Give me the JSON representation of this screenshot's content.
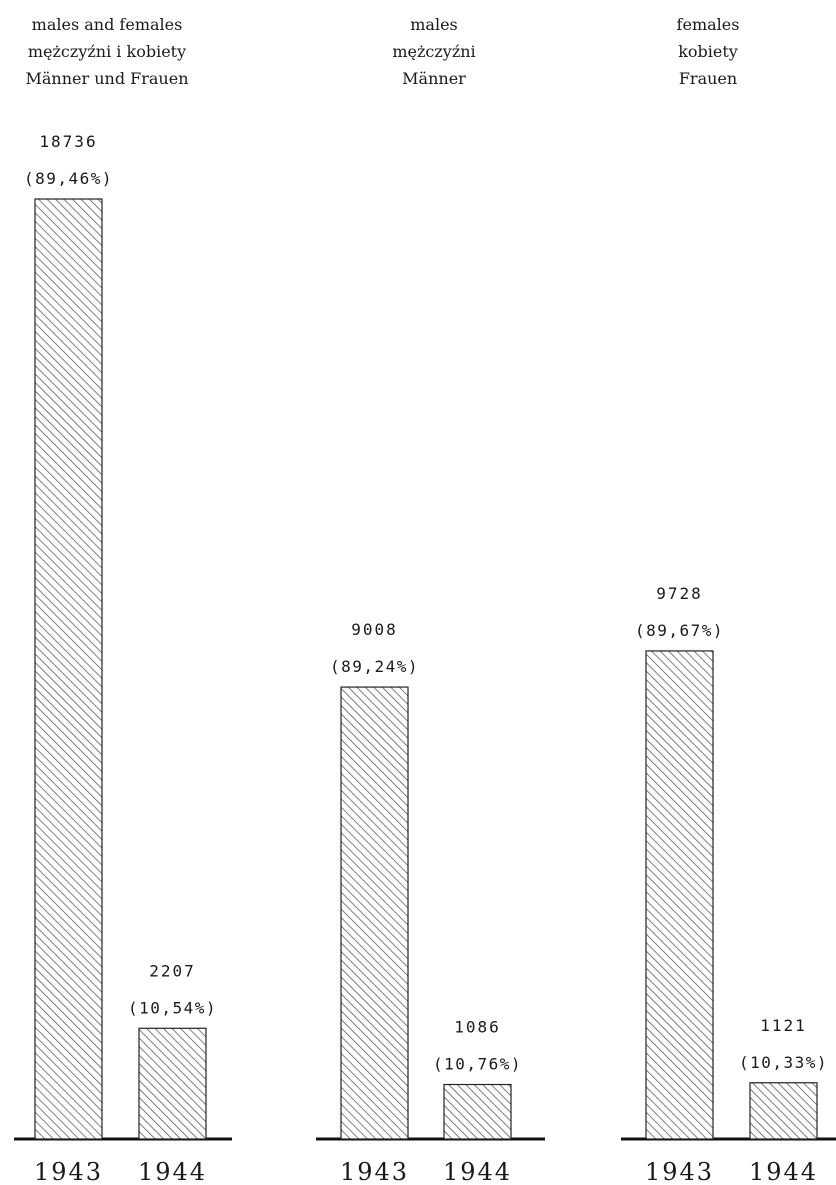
{
  "colors": {
    "ink": "#1a1a1a",
    "hatch": "#4a4a4a",
    "background": "#ffffff"
  },
  "chart_data": [
    {
      "type": "bar",
      "title_lines": [
        "males and females",
        "mężczyźni i kobiety",
        "Männer und Frauen"
      ],
      "categories": [
        "1943",
        "1944"
      ],
      "values": [
        18736,
        2207
      ],
      "value_labels": [
        "18736",
        "2207"
      ],
      "percent_labels": [
        "(89,46%)",
        "(10,54%)"
      ],
      "ylim": [
        0,
        18736
      ]
    },
    {
      "type": "bar",
      "title_lines": [
        "males",
        "mężczyźni",
        "Männer"
      ],
      "categories": [
        "1943",
        "1944"
      ],
      "values": [
        9008,
        1086
      ],
      "value_labels": [
        "9008",
        "1086"
      ],
      "percent_labels": [
        "(89,24%)",
        "(10,76%)"
      ],
      "ylim": [
        0,
        18736
      ]
    },
    {
      "type": "bar",
      "title_lines": [
        "females",
        "kobiety",
        "Frauen"
      ],
      "categories": [
        "1943",
        "1944"
      ],
      "values": [
        9728,
        1121
      ],
      "value_labels": [
        "9728",
        "1121"
      ],
      "percent_labels": [
        "(89,67%)",
        "(10,33%)"
      ],
      "ylim": [
        0,
        18736
      ]
    }
  ]
}
